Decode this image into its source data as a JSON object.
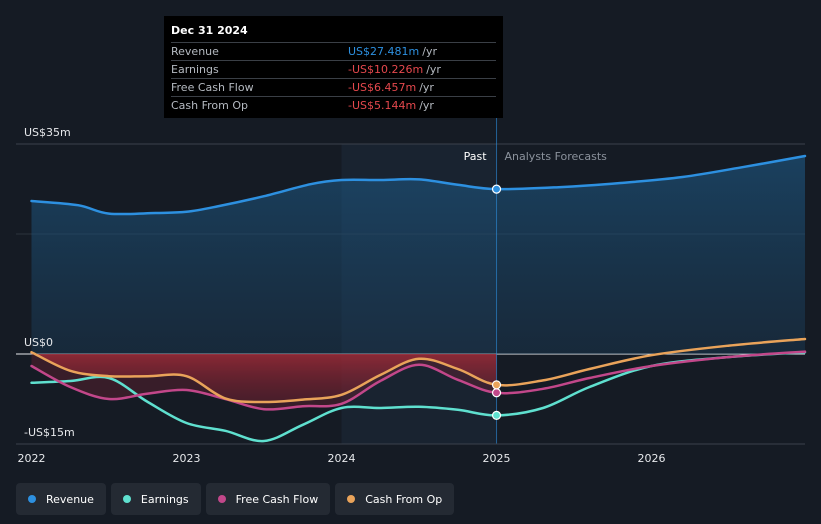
{
  "colors": {
    "revenue": "#2d90e0",
    "earnings": "#5fe0cf",
    "free_cash_flow": "#c2478a",
    "cash_from_op": "#e9a35a"
  },
  "tooltip": {
    "date": "Dec 31 2024",
    "rows": [
      {
        "name": "Revenue",
        "value": "US$27.481m",
        "unit": "/yr"
      },
      {
        "name": "Earnings",
        "value": "-US$10.226m",
        "unit": "/yr"
      },
      {
        "name": "Free Cash Flow",
        "value": "-US$6.457m",
        "unit": "/yr"
      },
      {
        "name": "Cash From Op",
        "value": "-US$5.144m",
        "unit": "/yr"
      }
    ]
  },
  "legend": [
    {
      "label": "Revenue",
      "icon": "revenue-dot"
    },
    {
      "label": "Earnings",
      "icon": "earnings-dot"
    },
    {
      "label": "Free Cash Flow",
      "icon": "free-cash-flow-dot"
    },
    {
      "label": "Cash From Op",
      "icon": "cash-from-op-dot"
    }
  ],
  "chart_data": {
    "type": "line",
    "title": "",
    "y_tick_labels": [
      "US$35m",
      "US$0",
      "-US$15m"
    ],
    "y_ticks": [
      35,
      0,
      -15
    ],
    "ylim": [
      -15,
      35
    ],
    "xlim": [
      2021.9,
      2026.99
    ],
    "x_tick_labels": [
      "2022",
      "2023",
      "2024",
      "2025",
      "2026"
    ],
    "x_ticks": [
      2022,
      2023,
      2024,
      2025,
      2026
    ],
    "divider_x": 2025.0,
    "highlight_start": 2024.0,
    "past_label": "Past",
    "forecast_label": "Analysts Forecasts",
    "series": [
      {
        "name": "Revenue",
        "key": "revenue",
        "x": [
          2022.0,
          2022.3,
          2022.5,
          2022.8,
          2023.0,
          2023.2,
          2023.5,
          2023.8,
          2024.0,
          2024.25,
          2024.5,
          2024.75,
          2025.0,
          2025.4,
          2025.8,
          2026.2,
          2026.6,
          2026.99
        ],
        "values": [
          25.5,
          24.8,
          23.4,
          23.5,
          23.7,
          24.6,
          26.3,
          28.3,
          29.0,
          29.0,
          29.1,
          28.2,
          27.48,
          27.8,
          28.5,
          29.5,
          31.2,
          33.0
        ]
      },
      {
        "name": "Earnings",
        "key": "earnings",
        "x": [
          2022.0,
          2022.25,
          2022.5,
          2022.75,
          2023.0,
          2023.25,
          2023.5,
          2023.75,
          2024.0,
          2024.25,
          2024.5,
          2024.75,
          2025.0,
          2025.3,
          2025.6,
          2026.0,
          2026.5,
          2026.99
        ],
        "values": [
          -4.8,
          -4.5,
          -4.0,
          -8.0,
          -11.5,
          -12.8,
          -14.5,
          -11.8,
          -9.0,
          -9.0,
          -8.8,
          -9.3,
          -10.23,
          -9.0,
          -5.5,
          -2.0,
          -0.5,
          0.3
        ]
      },
      {
        "name": "Free Cash Flow",
        "key": "free_cash_flow",
        "x": [
          2022.0,
          2022.25,
          2022.5,
          2022.75,
          2023.0,
          2023.25,
          2023.5,
          2023.75,
          2024.0,
          2024.25,
          2024.5,
          2024.75,
          2025.0,
          2025.3,
          2025.6,
          2026.0,
          2026.5,
          2026.99
        ],
        "values": [
          -2.0,
          -5.5,
          -7.5,
          -6.6,
          -6.0,
          -7.5,
          -9.2,
          -8.7,
          -8.3,
          -4.5,
          -1.8,
          -4.3,
          -6.46,
          -5.8,
          -4.0,
          -2.0,
          -0.5,
          0.4
        ]
      },
      {
        "name": "Cash From Op",
        "key": "cash_from_op",
        "x": [
          2022.0,
          2022.25,
          2022.5,
          2022.75,
          2023.0,
          2023.25,
          2023.5,
          2023.75,
          2024.0,
          2024.25,
          2024.5,
          2024.75,
          2025.0,
          2025.3,
          2025.6,
          2026.0,
          2026.5,
          2026.99
        ],
        "values": [
          0.3,
          -2.8,
          -3.7,
          -3.7,
          -3.7,
          -7.4,
          -8.0,
          -7.6,
          -6.8,
          -3.5,
          -0.8,
          -2.5,
          -5.14,
          -4.4,
          -2.5,
          -0.2,
          1.4,
          2.5
        ]
      }
    ]
  }
}
